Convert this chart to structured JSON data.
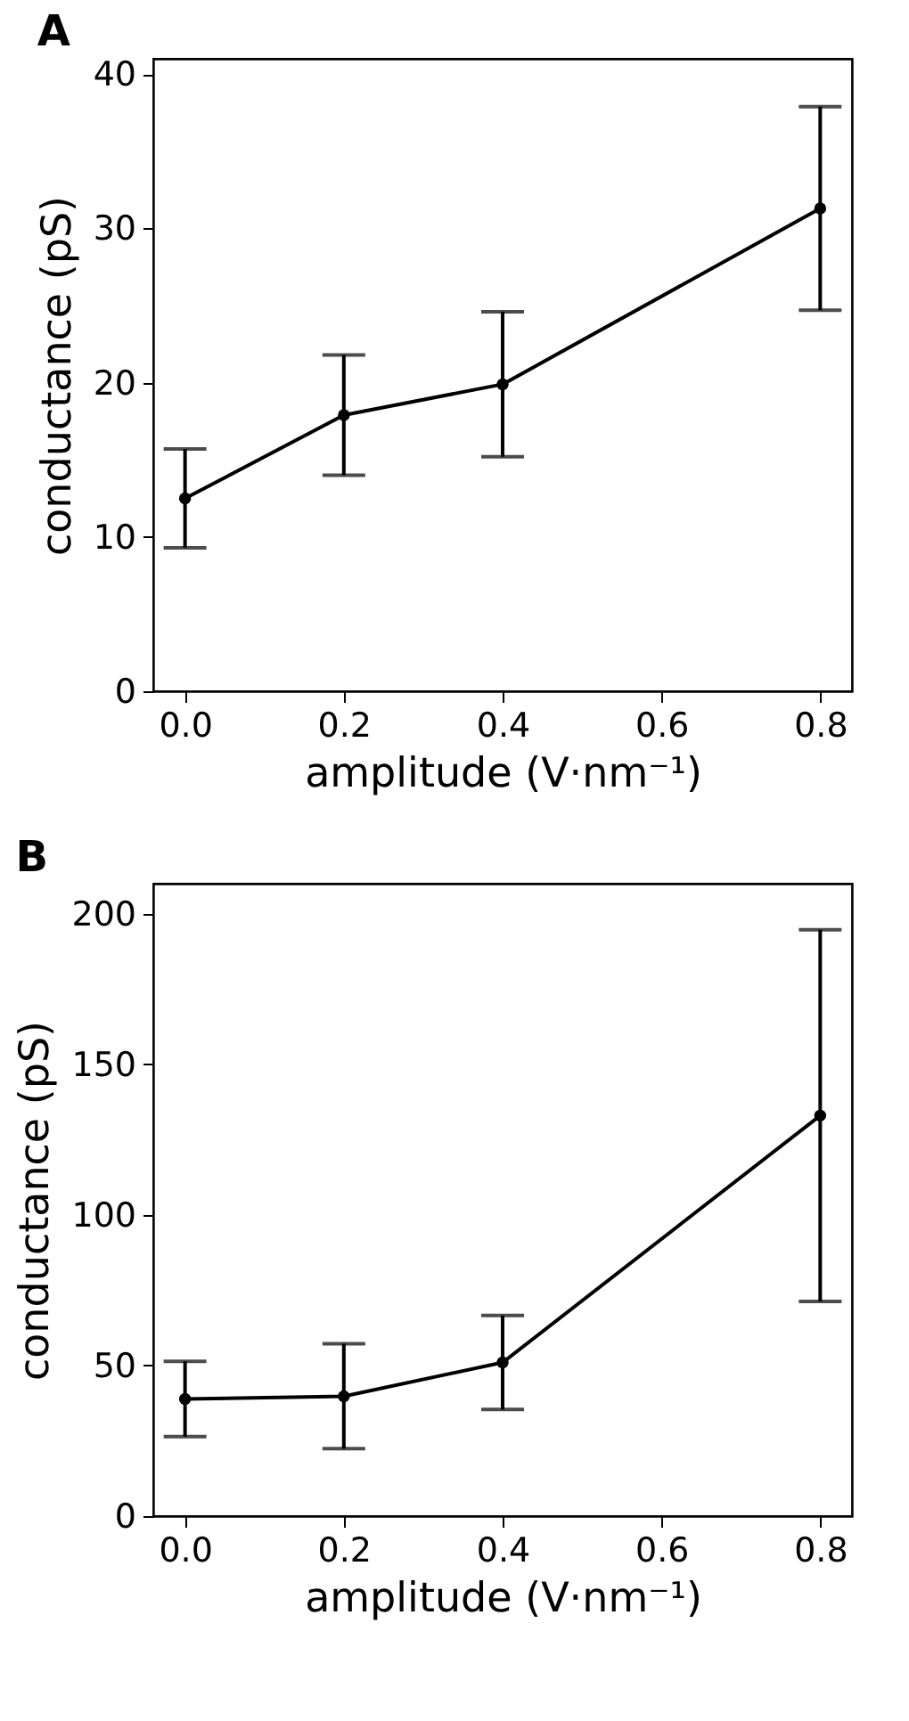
{
  "chart_data": [
    {
      "type": "line",
      "title": "A",
      "xlabel": "amplitude (V·nm⁻¹)",
      "ylabel": "conductance (pS)",
      "x": [
        0.0,
        0.2,
        0.4,
        0.8
      ],
      "series": [
        {
          "color": "#000000",
          "values": [
            12.5,
            17.9,
            19.9,
            31.3
          ],
          "errors": [
            3.2,
            3.9,
            4.7,
            6.6
          ]
        }
      ],
      "xlim": [
        -0.04,
        0.84
      ],
      "xticks": [
        {
          "value": 0,
          "label": "0.0"
        },
        0.2,
        0.4,
        0.6,
        0.8
      ],
      "ylim": [
        0,
        41
      ],
      "yticks": [
        0,
        10,
        20,
        30,
        40
      ],
      "grid": false,
      "marker": "circle",
      "line_style": "solid"
    },
    {
      "type": "line",
      "title": "B",
      "xlabel": "amplitude (V·nm⁻¹)",
      "ylabel": "conductance (pS)",
      "x": [
        0.0,
        0.2,
        0.4,
        0.8
      ],
      "series": [
        {
          "color": "#000000",
          "values": [
            38.9,
            39.8,
            51.0,
            133.0
          ],
          "errors": [
            12.5,
            17.4,
            15.6,
            61.7
          ]
        }
      ],
      "xlim": [
        -0.04,
        0.84
      ],
      "xticks": [
        {
          "value": 0,
          "label": "0.0"
        },
        0.2,
        0.4,
        0.6,
        0.8
      ],
      "ylim": [
        0,
        210
      ],
      "yticks": [
        0,
        50,
        100,
        150,
        200
      ],
      "grid": false,
      "marker": "circle",
      "line_style": "solid"
    }
  ]
}
